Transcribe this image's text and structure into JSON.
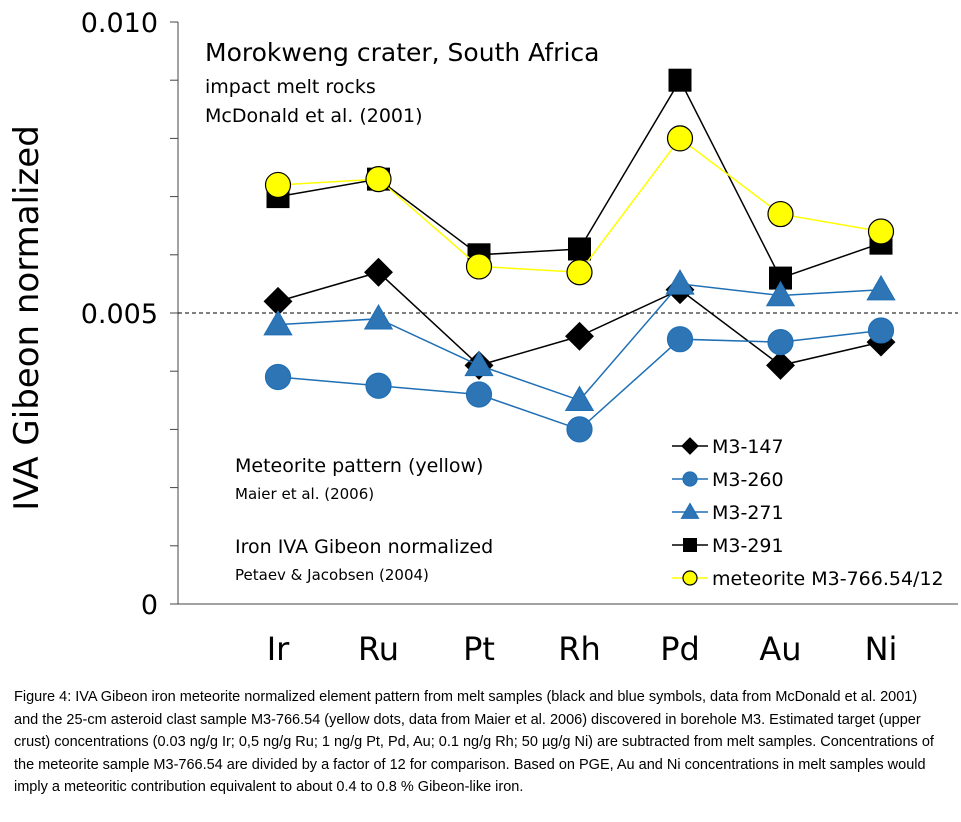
{
  "chart_data": {
    "type": "line",
    "ylabel": "IVA Gibeon normalized",
    "ylim": [
      0,
      0.01
    ],
    "yticks": [
      "0.010",
      "0.005",
      "0"
    ],
    "reference_line": 0.005,
    "categories": [
      "Ir",
      "Ru",
      "Pt",
      "Rh",
      "Pd",
      "Au",
      "Ni"
    ],
    "series": [
      {
        "name": "M3-147",
        "marker": "diamond",
        "color": "#000000",
        "fill": "#000000",
        "values": [
          0.0052,
          0.0057,
          0.0041,
          0.0046,
          0.0054,
          0.0041,
          0.0045
        ]
      },
      {
        "name": "M3-260",
        "marker": "circle",
        "color": "#1F6FB5",
        "fill": "#2E75B6",
        "values": [
          0.0039,
          0.00375,
          0.0036,
          0.003,
          0.00455,
          0.0045,
          0.0047
        ]
      },
      {
        "name": "M3-271",
        "marker": "triangle",
        "color": "#1F6FB5",
        "fill": "#2E75B6",
        "values": [
          0.0048,
          0.0049,
          0.0041,
          0.0035,
          0.0055,
          0.0053,
          0.0054
        ]
      },
      {
        "name": "M3-291",
        "marker": "square",
        "color": "#000000",
        "fill": "#000000",
        "values": [
          0.007,
          0.0073,
          0.006,
          0.0061,
          0.009,
          0.0056,
          0.0062
        ]
      },
      {
        "name": "meteorite M3-766.54/12",
        "marker": "circle",
        "color": "#000000",
        "fill": "#FFFF00",
        "line": "#FFFF00",
        "values": [
          0.0072,
          0.0073,
          0.0058,
          0.0057,
          0.008,
          0.0067,
          0.0064
        ]
      }
    ]
  },
  "annotations": {
    "title": "Morokweng crater, South Africa",
    "subtitle": "impact melt rocks",
    "source_melt": "McDonald et al. (2001)",
    "meteorite_pattern": "Meteorite pattern (yellow)",
    "meteorite_source": "Maier et al. (2006)",
    "iron_normalized": "Iron IVA Gibeon normalized",
    "iron_source": "Petaev & Jacobsen (2004)"
  },
  "caption": "Figure 4: IVA Gibeon iron meteorite normalized element pattern from melt samples (black and blue symbols, data from McDonald et al. 2001) and the 25-cm asteroid clast sample M3-766.54 (yellow dots, data from Maier et al. 2006) discovered in borehole M3. Estimated target (upper crust) concentrations (0.03 ng/g Ir; 0,5 ng/g Ru; 1 ng/g Pt, Pd, Au; 0.1 ng/g Rh; 50 µg/g Ni) are subtracted from melt samples. Concentrations of the meteorite sample M3-766.54 are divided by a  factor of 12 for comparison. Based on PGE, Au and Ni concentrations in melt samples would imply a meteoritic contribution equivalent to about 0.4 to 0.8 % Gibeon-like iron."
}
